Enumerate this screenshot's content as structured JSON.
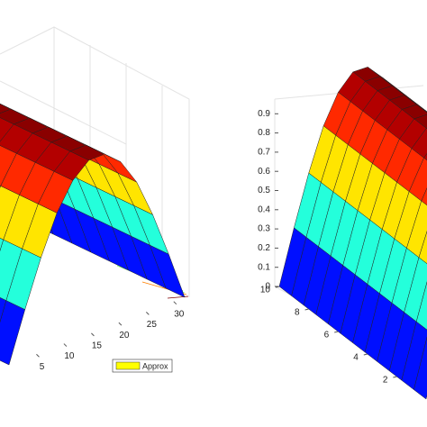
{
  "chart_data": [
    {
      "type": "surface",
      "xlim": [
        0,
        32
      ],
      "xticks": [
        5,
        10,
        15,
        20,
        25,
        30
      ],
      "series": [
        {
          "name": "Approx",
          "color": "#ffff00",
          "values": [
            0,
            0.28,
            0.54,
            0.76,
            0.91,
            0.99,
            0.99,
            0.91,
            0.76,
            0.54,
            0.28,
            0
          ]
        }
      ]
    },
    {
      "type": "surface",
      "ylim": [
        0,
        10
      ],
      "yticks": [
        2,
        4,
        6,
        8,
        10
      ],
      "zlim": [
        0,
        1
      ],
      "zticks": [
        0,
        0.1,
        0.2,
        0.3,
        0.4,
        0.5,
        0.6,
        0.7,
        0.8,
        0.9
      ],
      "values": [
        0,
        0.28,
        0.54,
        0.76,
        0.91,
        0.99,
        0.99,
        0.91,
        0.76,
        0.54,
        0.28,
        0
      ]
    }
  ]
}
